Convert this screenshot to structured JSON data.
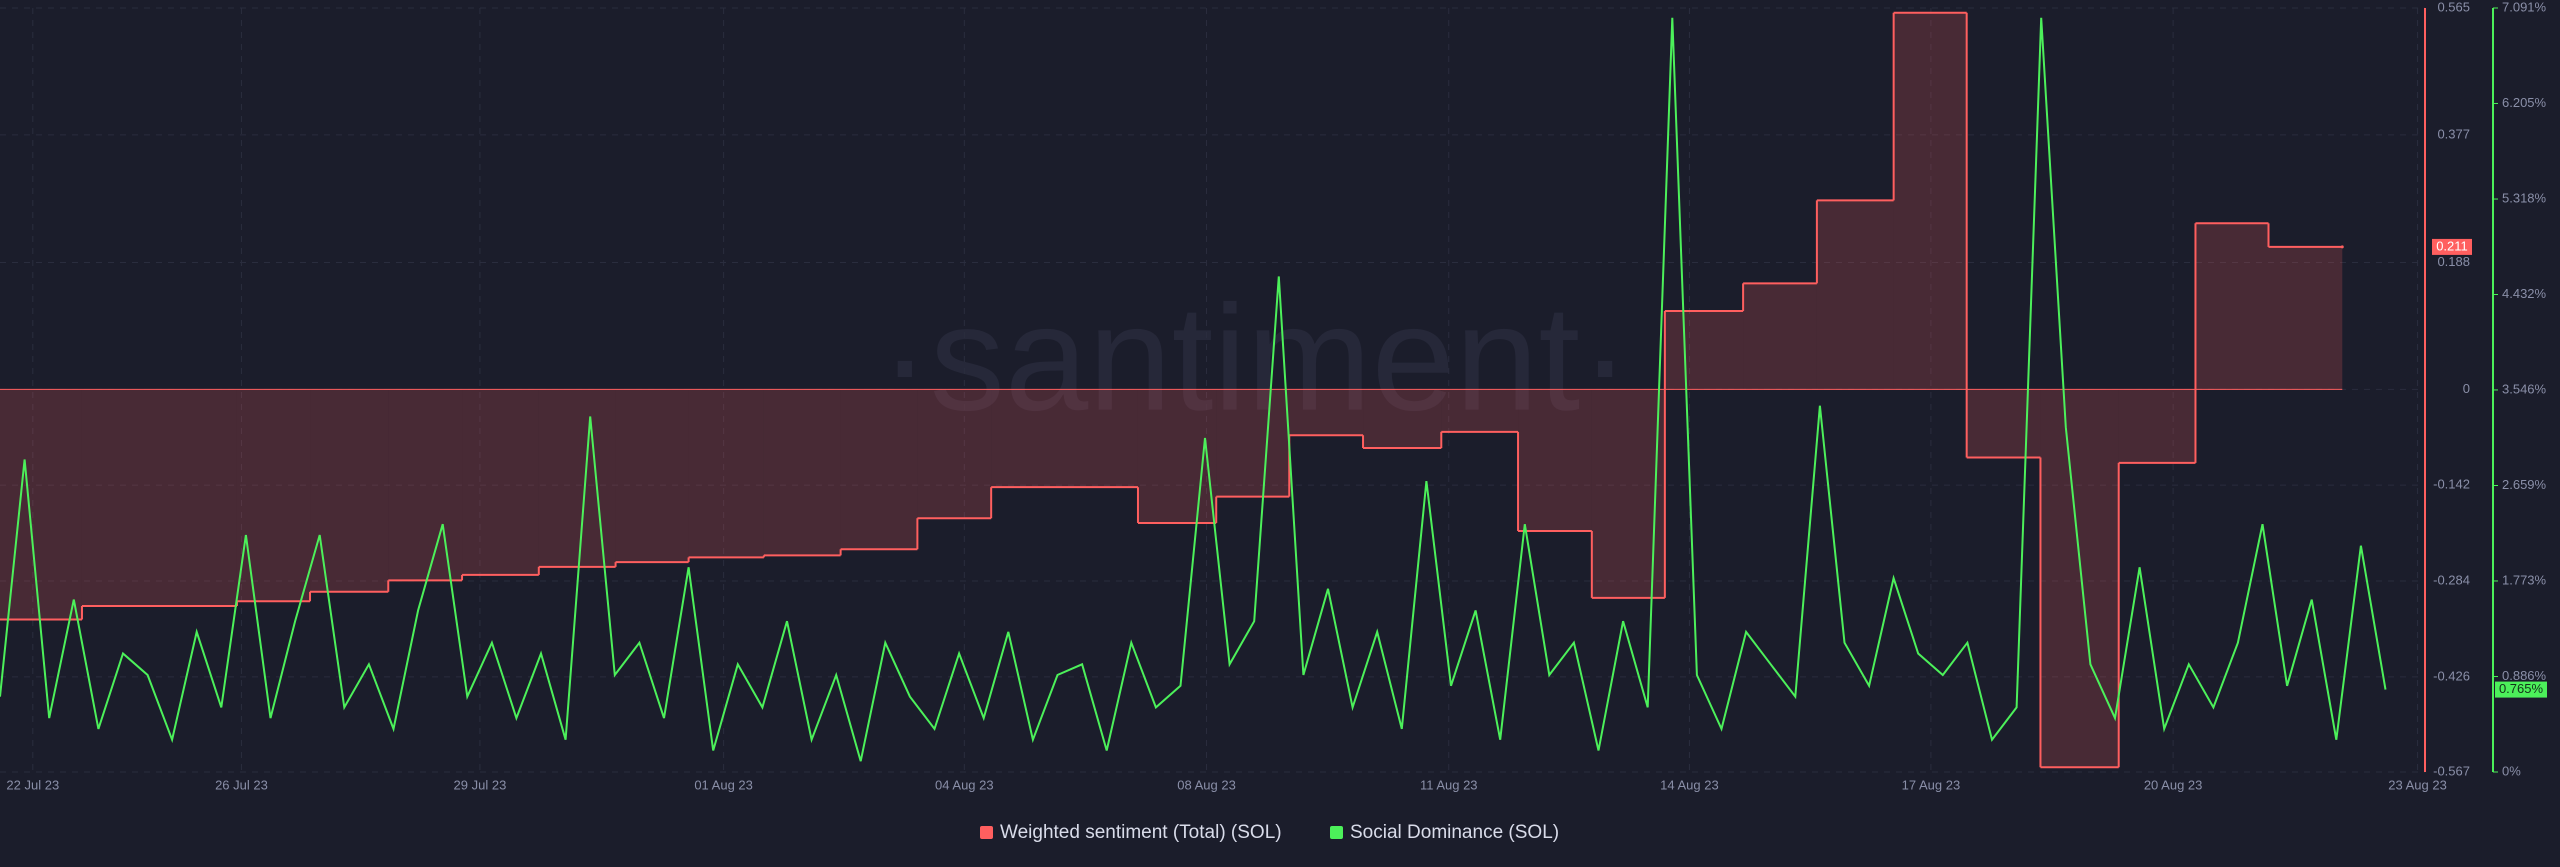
{
  "chart_data": {
    "type": "line",
    "watermark": "·santiment·",
    "xlim": [
      -0.44,
      32.1
    ],
    "xticks": [
      {
        "value": 0,
        "label": "22 Jul 23"
      },
      {
        "value": 2.8,
        "label": "26 Jul 23"
      },
      {
        "value": 6.0,
        "label": "29 Jul 23"
      },
      {
        "value": 9.27,
        "label": "01 Aug 23"
      },
      {
        "value": 12.5,
        "label": "04 Aug 23"
      },
      {
        "value": 15.75,
        "label": "08 Aug 23"
      },
      {
        "value": 19.0,
        "label": "11 Aug 23"
      },
      {
        "value": 22.23,
        "label": "14 Aug 23"
      },
      {
        "value": 25.47,
        "label": "17 Aug 23"
      },
      {
        "value": 28.72,
        "label": "20 Aug 23"
      },
      {
        "value": 32.0,
        "label": "23 Aug 23"
      }
    ],
    "ylim": [
      -0.567,
      0.565
    ],
    "yticks": [
      -0.567,
      -0.426,
      -0.284,
      -0.142,
      0,
      0.188,
      0.377,
      0.565
    ],
    "y2lim": [
      0,
      7.091
    ],
    "y2ticks": [
      {
        "value": 0,
        "label": "0%"
      },
      {
        "value": 0.886,
        "label": "0.886%"
      },
      {
        "value": 1.773,
        "label": "1.773%"
      },
      {
        "value": 2.659,
        "label": "2.659%"
      },
      {
        "value": 3.546,
        "label": "3.546%"
      },
      {
        "value": 4.432,
        "label": "4.432%"
      },
      {
        "value": 5.318,
        "label": "5.318%"
      },
      {
        "value": 6.205,
        "label": "6.205%"
      },
      {
        "value": 7.091,
        "label": "7.091%"
      }
    ],
    "grid": true,
    "series": [
      {
        "name": "Weighted sentiment (Total) (SOL)",
        "color": "#ff5f5f",
        "step": true,
        "last_label": "0.211",
        "x": [
          -0.44,
          0.66,
          2.74,
          3.72,
          4.77,
          5.76,
          6.79,
          7.82,
          8.8,
          9.81,
          10.84,
          11.87,
          12.86,
          14.83,
          15.88,
          16.86,
          17.85,
          18.9,
          19.93,
          20.92,
          21.9,
          22.95,
          23.94,
          24.97,
          25.95,
          26.94,
          27.99,
          29.02,
          30.0,
          30.99
        ],
        "values": [
          -0.341,
          -0.321,
          -0.314,
          -0.3,
          -0.283,
          -0.275,
          -0.263,
          -0.256,
          -0.249,
          -0.246,
          -0.237,
          -0.191,
          -0.145,
          -0.198,
          -0.159,
          -0.068,
          -0.087,
          -0.063,
          -0.21,
          -0.309,
          0.116,
          0.157,
          0.28,
          0.558,
          -0.101,
          -0.56,
          -0.109,
          0.246,
          0.211,
          0.211
        ]
      },
      {
        "name": "Social Dominance (SOL)",
        "color": "#4cf05a",
        "axis": "y2",
        "last_label": "0.765%",
        "x": [
          -0.44,
          -0.11,
          0.22,
          0.55,
          0.88,
          1.21,
          1.54,
          1.87,
          2.2,
          2.53,
          2.86,
          3.19,
          3.52,
          3.85,
          4.18,
          4.51,
          4.84,
          5.17,
          5.5,
          5.83,
          6.16,
          6.49,
          6.82,
          7.15,
          7.48,
          7.81,
          8.14,
          8.47,
          8.8,
          9.13,
          9.46,
          9.79,
          10.12,
          10.45,
          10.78,
          11.11,
          11.44,
          11.77,
          12.1,
          12.43,
          12.76,
          13.09,
          13.42,
          13.75,
          14.08,
          14.41,
          14.74,
          15.07,
          15.4,
          15.73,
          16.06,
          16.39,
          16.72,
          17.05,
          17.38,
          17.71,
          18.04,
          18.37,
          18.7,
          19.03,
          19.36,
          19.69,
          20.02,
          20.35,
          20.68,
          21.01,
          21.34,
          21.67,
          22.0,
          22.33,
          22.66,
          22.99,
          23.32,
          23.65,
          23.98,
          24.31,
          24.64,
          24.97,
          25.3,
          25.63,
          25.96,
          26.29,
          26.62,
          26.95,
          27.28,
          27.61,
          27.94,
          28.27,
          28.6,
          28.93,
          29.26,
          29.59,
          29.92,
          30.25,
          30.58,
          30.91,
          31.24,
          31.57
        ],
        "values": [
          0.7,
          2.9,
          0.5,
          1.6,
          0.4,
          1.1,
          0.9,
          0.3,
          1.3,
          0.6,
          2.2,
          0.5,
          1.4,
          2.2,
          0.6,
          1.0,
          0.4,
          1.5,
          2.3,
          0.7,
          1.2,
          0.5,
          1.1,
          0.3,
          3.3,
          0.9,
          1.2,
          0.5,
          1.9,
          0.2,
          1.0,
          0.6,
          1.4,
          0.3,
          0.9,
          0.1,
          1.2,
          0.7,
          0.4,
          1.1,
          0.5,
          1.3,
          0.3,
          0.9,
          1.0,
          0.2,
          1.2,
          0.6,
          0.8,
          3.1,
          1.0,
          1.4,
          4.6,
          0.9,
          1.7,
          0.6,
          1.3,
          0.4,
          2.7,
          0.8,
          1.5,
          0.3,
          2.3,
          0.9,
          1.2,
          0.2,
          1.4,
          0.6,
          7.0,
          0.9,
          0.4,
          1.3,
          1.0,
          0.7,
          3.4,
          1.2,
          0.8,
          1.8,
          1.1,
          0.9,
          1.2,
          0.3,
          0.6,
          7.0,
          3.2,
          1.0,
          0.5,
          1.9,
          0.4,
          1.0,
          0.6,
          1.2,
          2.3,
          0.8,
          1.6,
          0.3,
          2.1,
          0.765
        ]
      }
    ]
  }
}
